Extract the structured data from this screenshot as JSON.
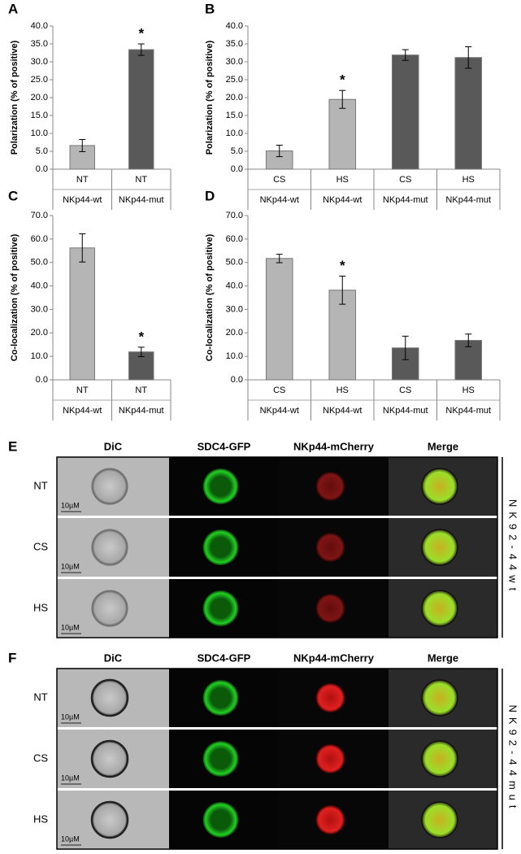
{
  "chart_data": [
    {
      "type": "bar",
      "label": "A",
      "y_label": "Polarization (% of positive)",
      "categories": [
        "NT",
        "NT"
      ],
      "groups": [
        "NKp44-wt",
        "NKp44-mut"
      ],
      "values": [
        6.6,
        33.4
      ],
      "errors": [
        1.7,
        1.6
      ],
      "colors": [
        "#b5b5b5",
        "#595959"
      ],
      "annotations": [
        {
          "index": 1,
          "text": "*"
        }
      ],
      "ylim": [
        0,
        40
      ],
      "yticks": [
        {
          "value": 0,
          "label": "0.0"
        },
        {
          "value": 5,
          "label": "5.0"
        },
        {
          "value": 10,
          "label": "10.0"
        },
        {
          "value": 15,
          "label": "15.0"
        },
        {
          "value": 20,
          "label": "20.0"
        },
        {
          "value": 25,
          "label": "25.0"
        },
        {
          "value": 30,
          "label": "30.0"
        },
        {
          "value": 35,
          "label": "35.0"
        },
        {
          "value": 40,
          "label": "40.0"
        }
      ]
    },
    {
      "type": "bar",
      "label": "B",
      "y_label": "Polarization (% of positive)",
      "categories": [
        "CS",
        "HS",
        "CS",
        "HS"
      ],
      "groups": [
        "NKp44-wt",
        "NKp44-wt",
        "NKp44-mut",
        "NKp44-mut"
      ],
      "values": [
        5.1,
        19.5,
        31.9,
        31.2
      ],
      "errors": [
        1.6,
        2.5,
        1.5,
        3.0
      ],
      "colors": [
        "#b5b5b5",
        "#b5b5b5",
        "#595959",
        "#595959"
      ],
      "annotations": [
        {
          "index": 1,
          "text": "*"
        }
      ],
      "ylim": [
        0,
        40
      ],
      "yticks": [
        {
          "value": 0,
          "label": "0.0"
        },
        {
          "value": 5,
          "label": "5.0"
        },
        {
          "value": 10,
          "label": "10.0"
        },
        {
          "value": 15,
          "label": "15.0"
        },
        {
          "value": 20,
          "label": "20.0"
        },
        {
          "value": 25,
          "label": "25.0"
        },
        {
          "value": 30,
          "label": "30.0"
        },
        {
          "value": 35,
          "label": "35.0"
        },
        {
          "value": 40,
          "label": "40.0"
        }
      ]
    },
    {
      "type": "bar",
      "label": "C",
      "y_label": "Co-localization (% of positive)",
      "categories": [
        "NT",
        "NT"
      ],
      "groups": [
        "NKp44-wt",
        "NKp44-mut"
      ],
      "values": [
        56.2,
        11.9
      ],
      "errors": [
        6.0,
        2.0
      ],
      "colors": [
        "#b5b5b5",
        "#595959"
      ],
      "annotations": [
        {
          "index": 1,
          "text": "*"
        }
      ],
      "ylim": [
        0,
        70
      ],
      "yticks": [
        {
          "value": 0,
          "label": "0.0"
        },
        {
          "value": 10,
          "label": "10.0"
        },
        {
          "value": 20,
          "label": "20.0"
        },
        {
          "value": 30,
          "label": "30.0"
        },
        {
          "value": 40,
          "label": "40.0"
        },
        {
          "value": 50,
          "label": "50.0"
        },
        {
          "value": 60,
          "label": "60.0"
        },
        {
          "value": 70,
          "label": "70.0"
        }
      ]
    },
    {
      "type": "bar",
      "label": "D",
      "y_label": "Co-localization (% of positive)",
      "categories": [
        "CS",
        "HS",
        "CS",
        "HS"
      ],
      "groups": [
        "NKp44-wt",
        "NKp44-wt",
        "NKp44-mut",
        "NKp44-mut"
      ],
      "values": [
        51.7,
        38.2,
        13.6,
        16.8
      ],
      "errors": [
        1.8,
        6.0,
        5.0,
        2.7
      ],
      "colors": [
        "#b5b5b5",
        "#b5b5b5",
        "#595959",
        "#595959"
      ],
      "annotations": [
        {
          "index": 1,
          "text": "*"
        }
      ],
      "ylim": [
        0,
        70
      ],
      "yticks": [
        {
          "value": 0,
          "label": "0.0"
        },
        {
          "value": 10,
          "label": "10.0"
        },
        {
          "value": 20,
          "label": "20.0"
        },
        {
          "value": 30,
          "label": "30.0"
        },
        {
          "value": 40,
          "label": "40.0"
        },
        {
          "value": 50,
          "label": "50.0"
        },
        {
          "value": 60,
          "label": "60.0"
        },
        {
          "value": 70,
          "label": "70.0"
        }
      ]
    }
  ],
  "panels": [
    {
      "label": "E",
      "columns": [
        "DiC",
        "SDC4-GFP",
        "NKp44-mCherry",
        "Merge"
      ],
      "rows": [
        "NT",
        "CS",
        "HS"
      ],
      "scale_bar": "10µM",
      "side_label": "NK92-44wt"
    },
    {
      "label": "F",
      "columns": [
        "DiC",
        "SDC4-GFP",
        "NKp44-mCherry",
        "Merge"
      ],
      "rows": [
        "NT",
        "CS",
        "HS"
      ],
      "scale_bar": "10µM",
      "side_label": "NK92-44mut"
    }
  ]
}
